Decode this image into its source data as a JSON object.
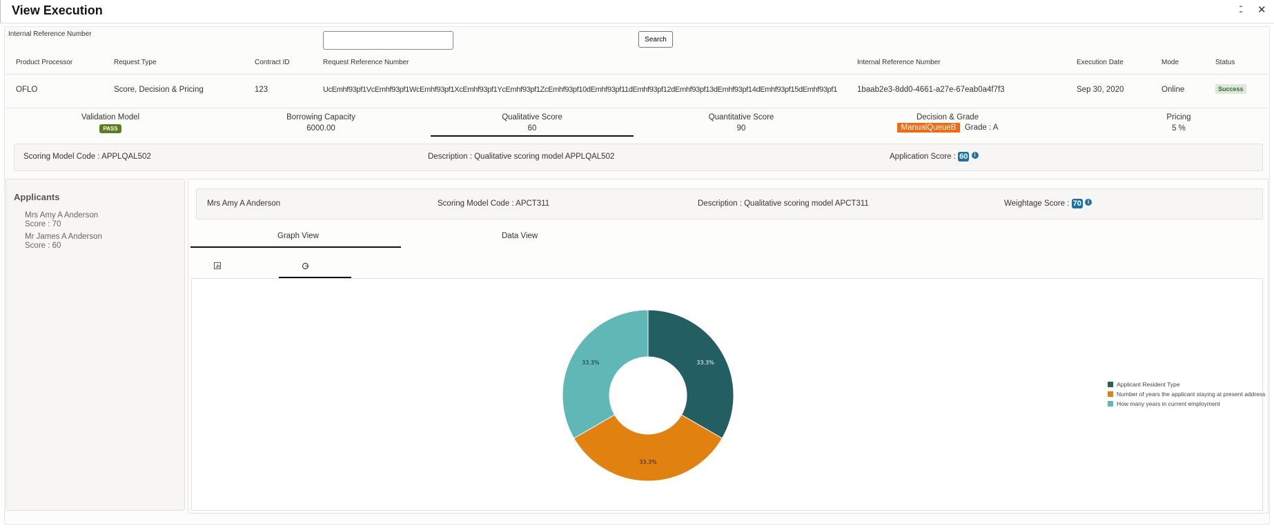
{
  "header": {
    "title": "View Execution",
    "icons": [
      "collapse-icon",
      "close-icon"
    ]
  },
  "search": {
    "label": "Internal Reference Number",
    "value": "",
    "placeholder": "",
    "button": "Search"
  },
  "table": {
    "columns": [
      "Product Processor",
      "Request Type",
      "Contract ID",
      "Request Reference Number",
      "Internal Reference Number",
      "Execution Date",
      "Mode",
      "Status"
    ],
    "rows": [
      {
        "product_processor": "OFLO",
        "request_type": "Score, Decision & Pricing",
        "contract_id": "123",
        "request_reference": "UcEmhf93pf1VcEmhf93pf1WcEmhf93pf1XcEmhf93pf1YcEmhf93pf1ZcEmhf93pf10dEmhf93pf11dEmhf93pf12dEmhf93pf13dEmhf93pf14dEmhf93pf15dEmhf93pf1",
        "internal_reference": "1baab2e3-8dd0-4661-a27e-67eab0a4f7f3",
        "execution_date": "Sep 30, 2020",
        "mode": "Online",
        "status": "Success"
      }
    ]
  },
  "summary": {
    "validation_model": {
      "label": "Validation Model",
      "value": "PASS"
    },
    "borrowing_capacity": {
      "label": "Borrowing Capacity",
      "value": "6000.00"
    },
    "qualitative_score": {
      "label": "Qualitative Score",
      "value": "60"
    },
    "quantitative_score": {
      "label": "Quantitative Score",
      "value": "90"
    },
    "decision_grade": {
      "label": "Decision & Grade",
      "decision": "ManualQueueB",
      "grade": "Grade : A"
    },
    "pricing": {
      "label": "Pricing",
      "value": "5 %"
    }
  },
  "scoring": {
    "model_code": "Scoring Model Code : APPLQAL502",
    "description": "Description : Qualitative scoring model APPLQAL502",
    "app_score_label": "Application Score :",
    "app_score": "60"
  },
  "applicants": {
    "title": "Applicants",
    "items": [
      {
        "name": "Mrs Amy A Anderson",
        "score": "Score : 70"
      },
      {
        "name": "Mr James A Anderson",
        "score": "Score : 60"
      }
    ]
  },
  "applicant_detail": {
    "name": "Mrs Amy A Anderson",
    "model_code": "Scoring Model Code : APCT311",
    "description": "Description : Qualitative scoring model APCT311",
    "weightage_label": "Weightage Score :",
    "weightage": "70"
  },
  "tabs": {
    "graph": "Graph View",
    "data": "Data View",
    "active": "graph",
    "chart_toggle": [
      "bar-chart-icon",
      "pie-chart-icon"
    ],
    "active_chart": "pie"
  },
  "chart_data": {
    "type": "pie",
    "donut": true,
    "categories": [
      "Applicant Resident Type",
      "Number of years the applicant staying at present address",
      "How many years in current employment"
    ],
    "values": [
      33.3,
      33.3,
      33.3
    ],
    "labels": [
      "33.3%",
      "33.3%",
      "33.3%"
    ],
    "colors": [
      "#235e63",
      "#e08110",
      "#5fb8b5"
    ],
    "legend": "right"
  }
}
